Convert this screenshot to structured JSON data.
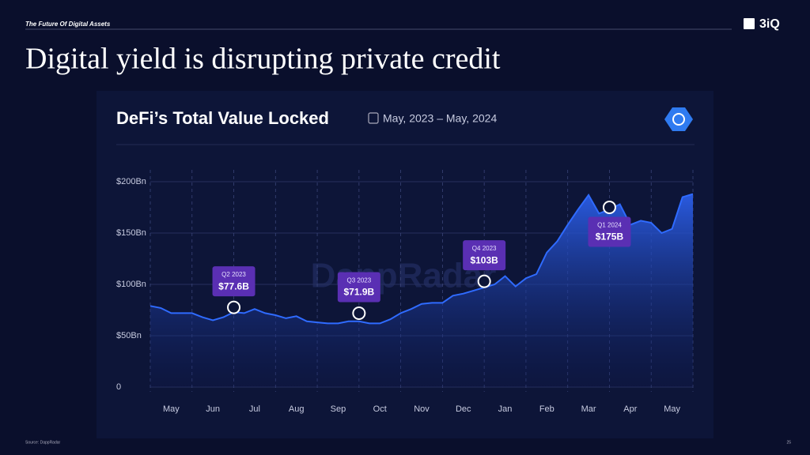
{
  "header": {
    "section": "The Future Of Digital Assets",
    "logo": "3iQ",
    "title": "Digital yield is disrupting private credit"
  },
  "footer": {
    "source": "Source: DappRadar",
    "page": "25"
  },
  "chart_data": {
    "type": "area",
    "title": "DeFi’s Total Value Locked",
    "subtitle": "May, 2023 – May, 2024",
    "watermark": "DappRadar",
    "categories": [
      null,
      null,
      "May",
      null,
      null,
      null,
      "Jun",
      null,
      null,
      null,
      "Jul",
      null,
      null,
      null,
      "Aug",
      null,
      null,
      null,
      "Sep",
      null,
      null,
      null,
      "Oct",
      null,
      null,
      null,
      "Nov",
      null,
      null,
      null,
      "Dec",
      null,
      null,
      null,
      "Jan",
      null,
      null,
      null,
      "Feb",
      null,
      null,
      null,
      "Mar",
      null,
      null,
      null,
      "Apr",
      null,
      null,
      null,
      "May",
      null,
      null
    ],
    "values": [
      79,
      77,
      72,
      72,
      72,
      68,
      65,
      68,
      73,
      72,
      76,
      72,
      70,
      67,
      69,
      64,
      63,
      62,
      62,
      64,
      64,
      62,
      62,
      66,
      72,
      76,
      81,
      82,
      82,
      89,
      91,
      94,
      97,
      100,
      108,
      98,
      106,
      110,
      131,
      142,
      158,
      173,
      187,
      169,
      173,
      178,
      158,
      162,
      160,
      150,
      154,
      185,
      188
    ],
    "color": "#2f6bff",
    "ylim": [
      0,
      200
    ],
    "yticks": [
      0,
      {
        "value": 50,
        "label": "$50Bn"
      },
      {
        "value": 100,
        "label": "$100Bn"
      },
      {
        "value": 150,
        "label": "$150Bn"
      },
      {
        "value": 200,
        "label": "$200Bn"
      }
    ],
    "grid": true,
    "annotations": [
      {
        "period": "Q2 2023",
        "label": "$77.6B",
        "value": 77.6,
        "x": 8
      },
      {
        "period": "Q3 2023",
        "label": "$71.9B",
        "value": 71.9,
        "x": 20
      },
      {
        "period": "Q4 2023",
        "label": "$103B",
        "value": 103,
        "x": 32
      },
      {
        "period": "Q1 2024",
        "label": "$175B",
        "value": 175,
        "x": 44
      }
    ]
  }
}
